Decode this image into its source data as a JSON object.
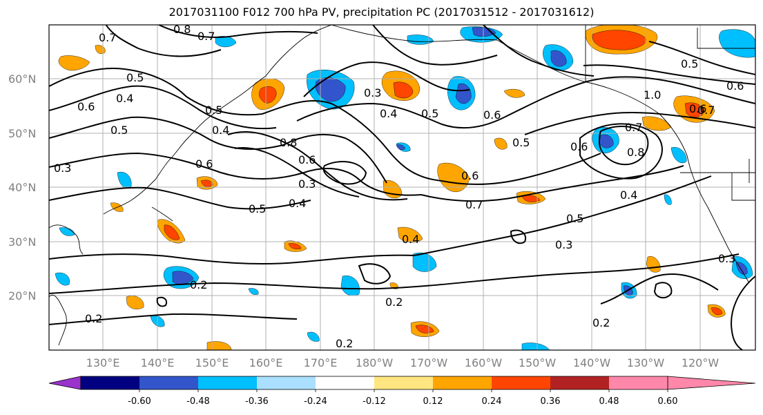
{
  "title": "2017031100 F012 700 hPa PV, precipitation PC (2017031512 - 2017031612)",
  "lat_labels": [
    "60°N",
    "50°N",
    "40°N",
    "30°N",
    "20°N"
  ],
  "lon_labels": [
    "130°E",
    "140°E",
    "150°E",
    "160°E",
    "170°E",
    "180°W",
    "170°W",
    "160°W",
    "150°W",
    "140°W",
    "130°W",
    "120°W"
  ],
  "colorbar": {
    "colors": [
      "#9933cc",
      "#000080",
      "#3355cc",
      "#00bfff",
      "#aadfff",
      "#ffffff",
      "#ffe680",
      "#ffa500",
      "#ff4500",
      "#b22222",
      "#ff88aa"
    ],
    "tick_labels": [
      "-0.60",
      "-0.48",
      "-0.36",
      "-0.24",
      "-0.12",
      "0.12",
      "0.24",
      "0.36",
      "0.48",
      "0.60"
    ]
  },
  "contour_labels": [
    "0.8",
    "0.7",
    "0.7",
    "0.6",
    "0.5",
    "0.4",
    "0.5",
    "0.5",
    "0.4",
    "0.3",
    "0.6",
    "0.8",
    "0.6",
    "0.3",
    "0.4",
    "0.5",
    "0.3",
    "0.4",
    "0.5",
    "0.6",
    "0.7",
    "0.6",
    "0.5",
    "0.4",
    "0.5",
    "0.3",
    "0.4",
    "0.2",
    "0.2",
    "0.2",
    "0.2",
    "0.2",
    "1.0",
    "0.6",
    "0.7",
    "0.8",
    "0.6",
    "0.7",
    "0.5",
    "0.6",
    "0.3"
  ]
}
